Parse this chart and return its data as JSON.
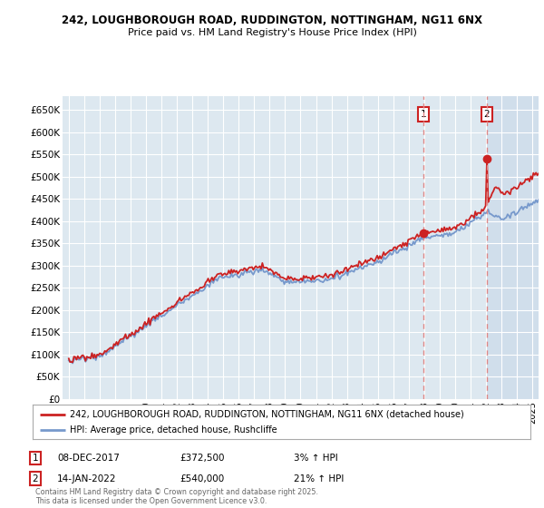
{
  "title_line1": "242, LOUGHBOROUGH ROAD, RUDDINGTON, NOTTINGHAM, NG11 6NX",
  "title_line2": "Price paid vs. HM Land Registry's House Price Index (HPI)",
  "ylim": [
    0,
    680000
  ],
  "yticks": [
    0,
    50000,
    100000,
    150000,
    200000,
    250000,
    300000,
    350000,
    400000,
    450000,
    500000,
    550000,
    600000,
    650000
  ],
  "ytick_labels": [
    "£0",
    "£50K",
    "£100K",
    "£150K",
    "£200K",
    "£250K",
    "£300K",
    "£350K",
    "£400K",
    "£450K",
    "£500K",
    "£550K",
    "£600K",
    "£650K"
  ],
  "hpi_color": "#7799cc",
  "price_color": "#cc2222",
  "dashed_line_color": "#dd8888",
  "background_color": "#dde8f0",
  "shade_color": "#c8d8e8",
  "grid_color": "#ffffff",
  "legend_label_red": "242, LOUGHBOROUGH ROAD, RUDDINGTON, NOTTINGHAM, NG11 6NX (detached house)",
  "legend_label_blue": "HPI: Average price, detached house, Rushcliffe",
  "annotation1_date": "08-DEC-2017",
  "annotation1_price": "£372,500",
  "annotation1_hpi": "3% ↑ HPI",
  "annotation2_date": "14-JAN-2022",
  "annotation2_price": "£540,000",
  "annotation2_hpi": "21% ↑ HPI",
  "copyright_text": "Contains HM Land Registry data © Crown copyright and database right 2025.\nThis data is licensed under the Open Government Licence v3.0.",
  "sale1_year": 2017.93,
  "sale1_price": 372500,
  "sale2_year": 2022.04,
  "sale2_price": 540000,
  "xlim_left": 1994.6,
  "xlim_right": 2025.4
}
